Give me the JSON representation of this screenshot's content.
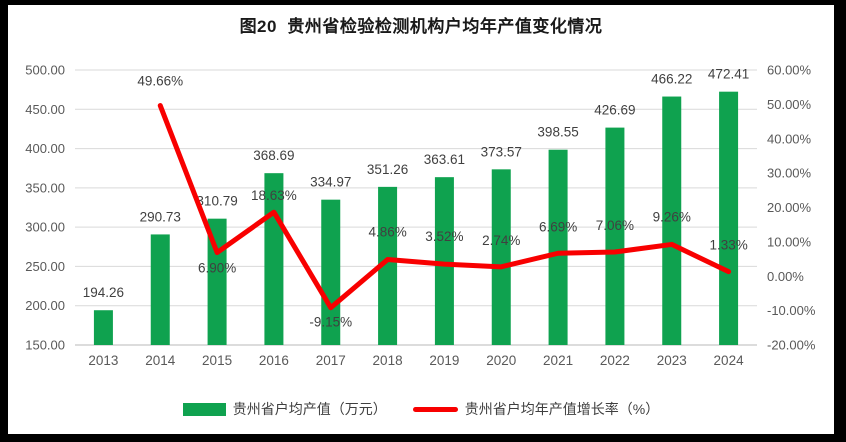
{
  "title": "图20  贵州省检验检测机构户均年产值变化情况",
  "colors": {
    "bar": "#0FA24F",
    "line": "#F80000",
    "grid": "#D9D9D9",
    "axis_line": "#C8C8C8",
    "tick_label": "#595959",
    "data_label": "#404040",
    "title_text": "#1A1A1A",
    "frame": "#000000",
    "background": "#FFFFFF"
  },
  "legend": {
    "bar_label": "贵州省户均产值（万元）",
    "line_label": "贵州省户均年产值增长率（%）"
  },
  "chart_data": {
    "type": "bar+line combo",
    "title": "图20 贵州省检验检测机构户均年产值变化情况",
    "categories": [
      "2013",
      "2014",
      "2015",
      "2016",
      "2017",
      "2018",
      "2019",
      "2020",
      "2021",
      "2022",
      "2023",
      "2024"
    ],
    "series": [
      {
        "name": "贵州省户均产值（万元）",
        "type": "bar",
        "axis": "left",
        "values": [
          194.26,
          290.73,
          310.79,
          368.69,
          334.97,
          351.26,
          363.61,
          373.57,
          398.55,
          426.69,
          466.22,
          472.41
        ],
        "labels": [
          "194.26",
          "290.73",
          "310.79",
          "368.69",
          "334.97",
          "351.26",
          "363.61",
          "373.57",
          "398.55",
          "426.69",
          "466.22",
          "472.41"
        ]
      },
      {
        "name": "贵州省户均年产值增长率（%）",
        "type": "line",
        "axis": "right",
        "values": [
          null,
          49.66,
          6.9,
          18.63,
          -9.15,
          4.86,
          3.52,
          2.74,
          6.69,
          7.06,
          9.26,
          1.33
        ],
        "labels": [
          null,
          "49.66%",
          "6.90%",
          "18.63%",
          "-9.15%",
          "4.86%",
          "3.52%",
          "2.74%",
          "6.69%",
          "7.06%",
          "9.26%",
          "1.33%"
        ],
        "label_dy": [
          null,
          -20,
          20,
          -12,
          19,
          -23,
          -23,
          -22,
          -22,
          -22,
          -23,
          -22
        ]
      }
    ],
    "left_axis": {
      "min": 150,
      "max": 500,
      "step": 50,
      "tick_labels": [
        "500.00",
        "450.00",
        "400.00",
        "350.00",
        "300.00",
        "250.00",
        "200.00",
        "150.00"
      ]
    },
    "right_axis": {
      "min": -20,
      "max": 60,
      "step": 10,
      "tick_labels": [
        "60.00%",
        "50.00%",
        "40.00%",
        "30.00%",
        "20.00%",
        "10.00%",
        "0.00%",
        "-10.00%",
        "-20.00%"
      ]
    },
    "grid": true,
    "legend_position": "bottom"
  }
}
